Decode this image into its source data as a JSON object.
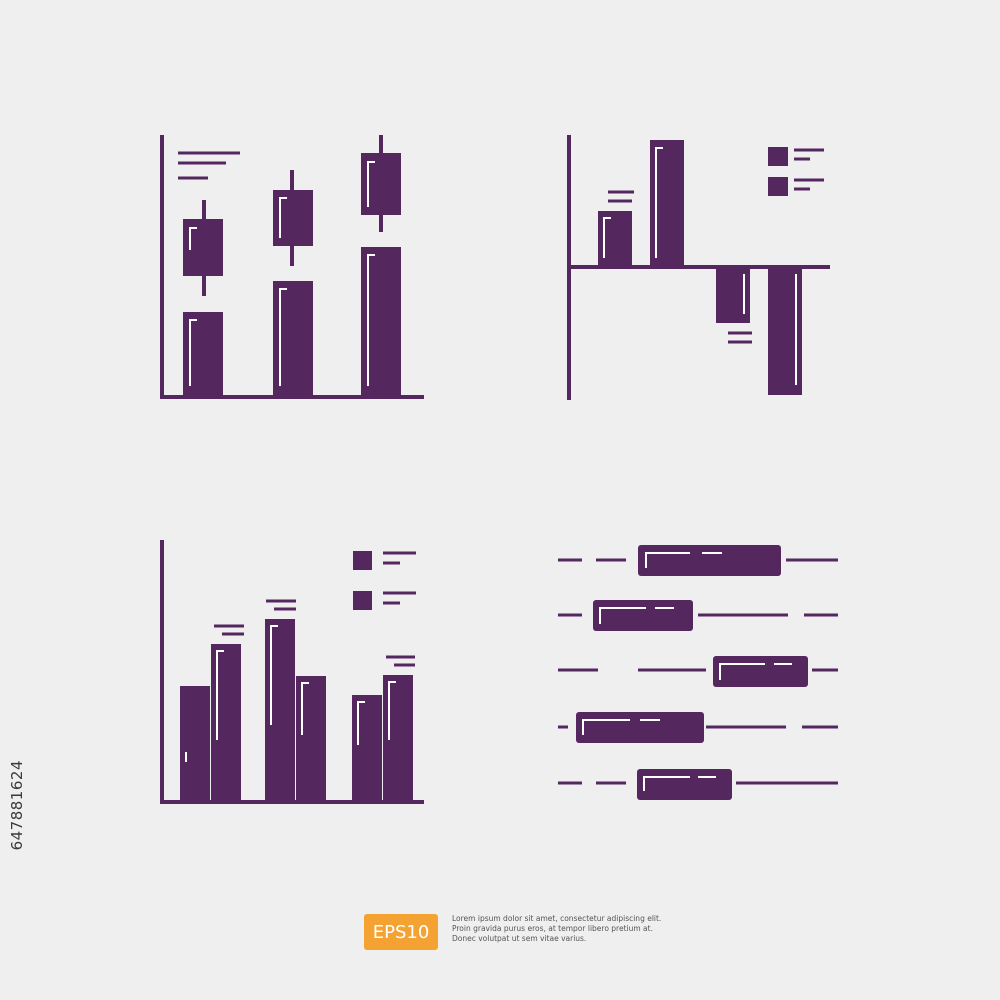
{
  "colors": {
    "primary": "#54275f",
    "highlight": "#ffffff",
    "background": "#efeff0",
    "badge": "#f4a333"
  },
  "icons": [
    "candlestick-chart-icon",
    "waterfall-chart-icon",
    "grouped-bar-chart-icon",
    "gantt-chart-icon"
  ],
  "footer": {
    "badge": "EPS10",
    "caption": [
      "Lorem ipsum dolor sit amet, consectetur adipiscing elit.",
      "Proin gravida purus eros, at tempor libero pretium at.",
      "Donec volutpat ut sem vitae varius."
    ]
  },
  "side_id": "647881624"
}
